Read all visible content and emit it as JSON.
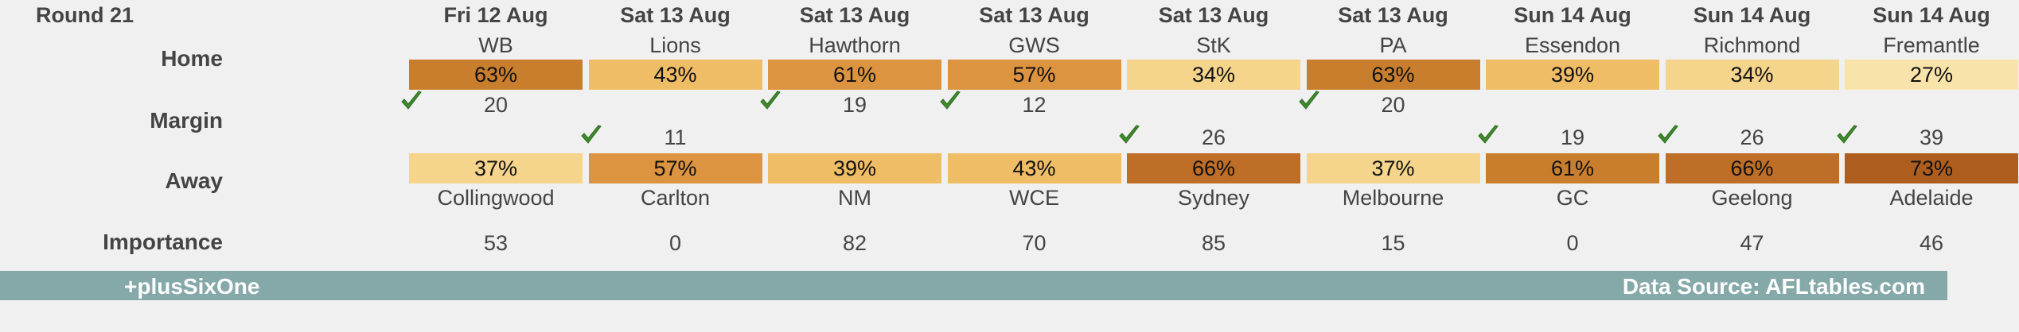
{
  "round_title": "Round 21",
  "row_labels": {
    "home": "Home",
    "margin": "Margin",
    "away": "Away",
    "importance": "Importance"
  },
  "colors": {
    "very_light": "#f8e4aa",
    "light": "#f5d48c",
    "mid_light": "#f0bd67",
    "mid": "#dd9440",
    "dark": "#c97e2e",
    "darker": "#be6e27",
    "darkest": "#ad5e1e",
    "footer_bg": "#85a8a8",
    "check_green": "#3e8a2c"
  },
  "games": [
    {
      "date": "Fri 12 Aug",
      "home": "WB",
      "home_pct": "63%",
      "away": "Collingwood",
      "away_pct": "37%",
      "margin": "20",
      "winner": "home",
      "importance": "53",
      "home_shade": "dark",
      "away_shade": "light"
    },
    {
      "date": "Sat 13 Aug",
      "home": "Lions",
      "home_pct": "43%",
      "away": "Carlton",
      "away_pct": "57%",
      "margin": "11",
      "winner": "away",
      "importance": "0",
      "home_shade": "mid_light",
      "away_shade": "mid"
    },
    {
      "date": "Sat 13 Aug",
      "home": "Hawthorn",
      "home_pct": "61%",
      "away": "NM",
      "away_pct": "39%",
      "margin": "19",
      "winner": "home",
      "importance": "82",
      "home_shade": "mid",
      "away_shade": "mid_light"
    },
    {
      "date": "Sat 13 Aug",
      "home": "GWS",
      "home_pct": "57%",
      "away": "WCE",
      "away_pct": "43%",
      "margin": "12",
      "winner": "home",
      "importance": "70",
      "home_shade": "mid",
      "away_shade": "mid_light"
    },
    {
      "date": "Sat 13 Aug",
      "home": "StK",
      "home_pct": "34%",
      "away": "Sydney",
      "away_pct": "66%",
      "margin": "26",
      "winner": "away",
      "importance": "85",
      "home_shade": "light",
      "away_shade": "darker"
    },
    {
      "date": "Sat 13 Aug",
      "home": "PA",
      "home_pct": "63%",
      "away": "Melbourne",
      "away_pct": "37%",
      "margin": "20",
      "winner": "home",
      "importance": "15",
      "home_shade": "dark",
      "away_shade": "light"
    },
    {
      "date": "Sun 14 Aug",
      "home": "Essendon",
      "home_pct": "39%",
      "away": "GC",
      "away_pct": "61%",
      "margin": "19",
      "winner": "away",
      "importance": "0",
      "home_shade": "mid_light",
      "away_shade": "dark"
    },
    {
      "date": "Sun 14 Aug",
      "home": "Richmond",
      "home_pct": "34%",
      "away": "Geelong",
      "away_pct": "66%",
      "margin": "26",
      "winner": "away",
      "importance": "47",
      "home_shade": "light",
      "away_shade": "darker"
    },
    {
      "date": "Sun 14 Aug",
      "home": "Fremantle",
      "home_pct": "27%",
      "away": "Adelaide",
      "away_pct": "73%",
      "margin": "39",
      "winner": "away",
      "importance": "46",
      "home_shade": "very_light",
      "away_shade": "darkest"
    }
  ],
  "footer": {
    "left": "+plusSixOne",
    "right": "Data Source: AFLtables.com"
  }
}
